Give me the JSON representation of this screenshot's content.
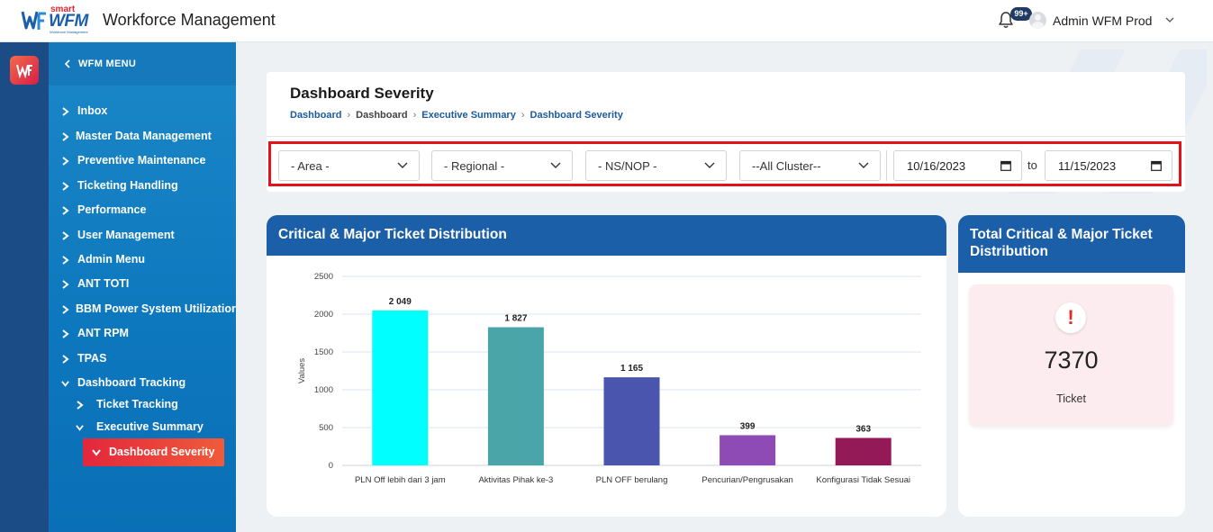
{
  "header": {
    "logo_small": "smart",
    "logo_main": "WFM",
    "logo_sub": "Workforce Management",
    "app_title": "Workforce Management",
    "notification_badge": "99+",
    "user_name": "Admin WFM Prod"
  },
  "sidebar": {
    "menu_title": "WFM MENU",
    "items": [
      {
        "label": "Inbox"
      },
      {
        "label": "Master Data Management"
      },
      {
        "label": "Preventive Maintenance"
      },
      {
        "label": "Ticketing Handling"
      },
      {
        "label": "Performance"
      },
      {
        "label": "User Management"
      },
      {
        "label": "Admin Menu"
      },
      {
        "label": "ANT TOTI"
      },
      {
        "label": "BBM Power System Utilizatior"
      },
      {
        "label": "ANT RPM"
      },
      {
        "label": "TPAS"
      },
      {
        "label": "Dashboard Tracking"
      }
    ],
    "sub_items": [
      {
        "label": "Ticket Tracking"
      },
      {
        "label": "Executive Summary"
      }
    ],
    "active_item": "Dashboard Severity"
  },
  "page": {
    "title": "Dashboard Severity",
    "breadcrumb": [
      "Dashboard",
      "Dashboard",
      "Executive Summary",
      "Dashboard Severity"
    ]
  },
  "filters": {
    "area": "- Area -",
    "regional": "- Regional -",
    "ns_nop": "- NS/NOP -",
    "cluster": "--All Cluster--",
    "date_from": "10/16/2023",
    "to_label": "to",
    "date_to": "11/15/2023"
  },
  "chart_card": {
    "title": "Critical & Major Ticket Distribution"
  },
  "chart_data": {
    "type": "bar",
    "categories": [
      "PLN Off lebih dari 3 jam",
      "Aktivitas Pihak ke-3",
      "PLN OFF berulang",
      "Pencurian/Pengrusakan",
      "Konfigurasi Tidak Sesuai"
    ],
    "values": [
      2049,
      1827,
      1165,
      399,
      363
    ],
    "data_labels": [
      "2 049",
      "1 827",
      "1 165",
      "399",
      "363"
    ],
    "colors": [
      "#00ffff",
      "#4aa5a8",
      "#4a55ae",
      "#8e4bb5",
      "#931a57"
    ],
    "ylabel": "Values",
    "ylim": [
      0,
      2500
    ],
    "yticks": [
      0,
      500,
      1000,
      1500,
      2000,
      2500
    ],
    "grid": true
  },
  "total_card": {
    "title": "Total Critical & Major Ticket Distribution",
    "alert_symbol": "!",
    "value": "7370",
    "unit": "Ticket"
  },
  "colors": {
    "primary": "#1b5fa8",
    "active": "#e3273d",
    "highlight_border": "#e2111c"
  }
}
